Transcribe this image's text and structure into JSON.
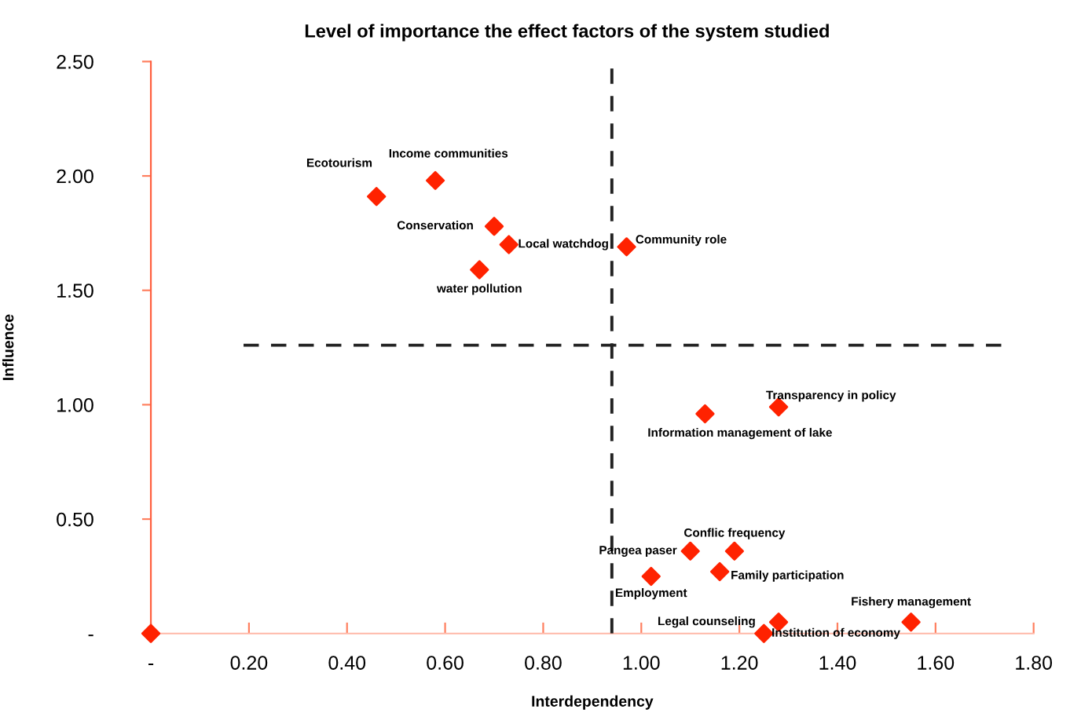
{
  "chart_data": {
    "type": "scatter",
    "title": "Level of importance the effect factors of the system studied",
    "xlabel": "Interdependency",
    "ylabel": "Influence",
    "x": [
      0,
      0.46,
      0.58,
      0.7,
      0.73,
      0.67,
      0.97,
      1.28,
      1.13,
      1.1,
      1.19,
      1.16,
      1.02,
      1.28,
      1.55,
      1.25
    ],
    "series": [
      {
        "color": "#ff2200",
        "values": [
          0,
          1.91,
          1.98,
          1.78,
          1.7,
          1.59,
          1.69,
          0.99,
          0.96,
          0.36,
          0.36,
          0.27,
          0.25,
          0.05,
          0.05,
          0.0
        ]
      }
    ],
    "marker": "diamond",
    "grid": false,
    "legend": false,
    "xlim": [
      0,
      1.8
    ],
    "ylim": [
      0,
      2.5
    ],
    "xticks": [
      {
        "value": 0,
        "label": "-"
      },
      {
        "value": 0.2,
        "label": "0.20"
      },
      {
        "value": 0.4,
        "label": "0.40"
      },
      {
        "value": 0.6,
        "label": "0.60"
      },
      {
        "value": 0.8,
        "label": "0.80"
      },
      {
        "value": 1.0,
        "label": "1.00"
      },
      {
        "value": 1.2,
        "label": "1.20"
      },
      {
        "value": 1.4,
        "label": "1.40"
      },
      {
        "value": 1.6,
        "label": "1.60"
      },
      {
        "value": 1.8,
        "label": "1.80"
      }
    ],
    "yticks": [
      {
        "value": 0,
        "label": "-"
      },
      {
        "value": 0.5,
        "label": "0.50"
      },
      {
        "value": 1.0,
        "label": "1.00"
      },
      {
        "value": 1.5,
        "label": "1.50"
      },
      {
        "value": 2.0,
        "label": "2.00"
      },
      {
        "value": 2.5,
        "label": "2.50"
      }
    ],
    "ref_lines": [
      {
        "axis": "x",
        "value": 0.94,
        "line_style": "dashed",
        "color": "#222222"
      },
      {
        "axis": "y",
        "value": 1.26,
        "line_style": "dashed",
        "color": "#222222"
      }
    ],
    "annotations": [
      {
        "text": "Ecotourism",
        "x": 0.46,
        "y": 1.91
      },
      {
        "text": "Income communities",
        "x": 0.58,
        "y": 1.98
      },
      {
        "text": "Conservation",
        "x": 0.7,
        "y": 1.78
      },
      {
        "text": "Local watchdog",
        "x": 0.73,
        "y": 1.7
      },
      {
        "text": "water pollution",
        "x": 0.67,
        "y": 1.59
      },
      {
        "text": "Community role",
        "x": 0.97,
        "y": 1.69
      },
      {
        "text": "Transparency in policy",
        "x": 1.28,
        "y": 0.99
      },
      {
        "text": "Information management of lake",
        "x": 1.13,
        "y": 0.96
      },
      {
        "text": "Conflic frequency",
        "x": 1.19,
        "y": 0.36
      },
      {
        "text": "Pangea paser",
        "x": 1.1,
        "y": 0.36
      },
      {
        "text": "Employment",
        "x": 1.02,
        "y": 0.25
      },
      {
        "text": "Family participation",
        "x": 1.16,
        "y": 0.27
      },
      {
        "text": "Legal counseling",
        "x": 1.28,
        "y": 0.05
      },
      {
        "text": "Fishery management",
        "x": 1.55,
        "y": 0.05
      },
      {
        "text": "Institution of economy",
        "x": 1.25,
        "y": 0.0
      }
    ]
  }
}
